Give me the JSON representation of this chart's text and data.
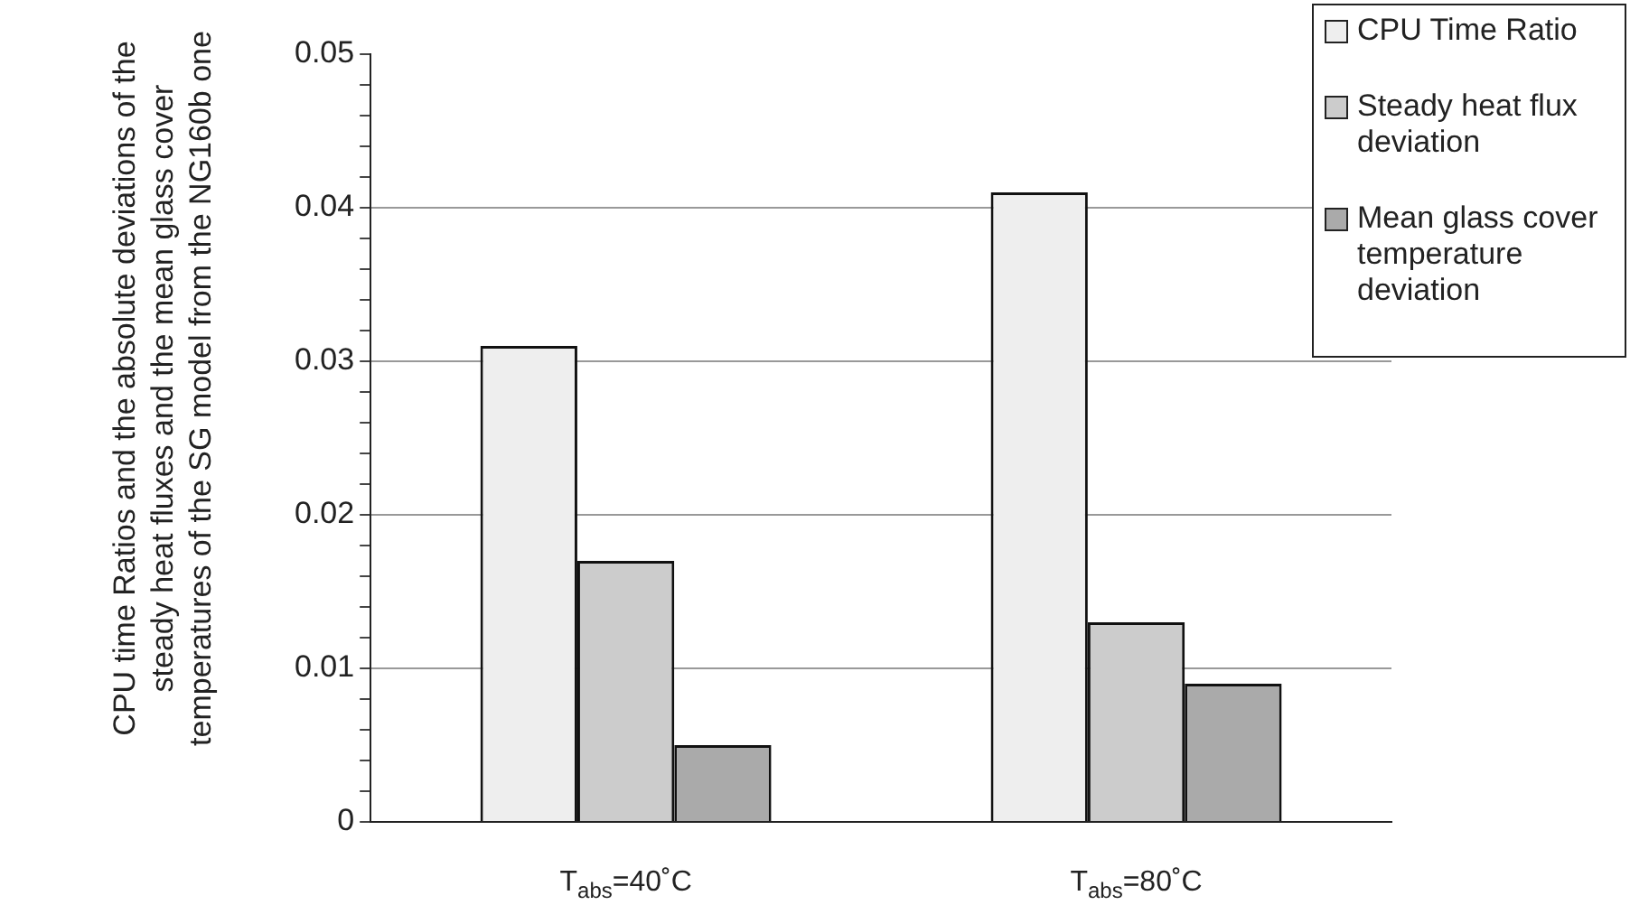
{
  "chart_data": {
    "type": "bar",
    "ylabel": "CPU time Ratios and the absolute deviations of the steady heat fluxes and the mean glass cover temperatures of the SG model from the NG160b one",
    "categories": [
      "T$_{abs}$=40˚C",
      "T$_{abs}$=80˚C"
    ],
    "series": [
      {
        "name": "CPU Time Ratio",
        "color": "#eeeeee",
        "values": [
          0.031,
          0.041
        ]
      },
      {
        "name": "Steady heat flux deviation",
        "color": "#cccccc",
        "values": [
          0.017,
          0.013
        ]
      },
      {
        "name": "Mean glass cover temperature deviation",
        "color": "#aaaaaa",
        "values": [
          0.005,
          0.009
        ]
      }
    ],
    "ylim": [
      0,
      0.05
    ],
    "yticks": [
      0,
      {
        "value": 0.002,
        "label": null
      },
      {
        "value": 0.004,
        "label": null
      },
      {
        "value": 0.006,
        "label": null
      },
      {
        "value": 0.008,
        "label": null
      },
      0.01,
      {
        "value": 0.012,
        "label": null
      },
      {
        "value": 0.014,
        "label": null
      },
      {
        "value": 0.016,
        "label": null
      },
      {
        "value": 0.018,
        "label": null
      },
      0.02,
      {
        "value": 0.022,
        "label": null
      },
      {
        "value": 0.024,
        "label": null
      },
      {
        "value": 0.026,
        "label": null
      },
      {
        "value": 0.028,
        "label": null
      },
      0.03,
      {
        "value": 0.032,
        "label": null
      },
      {
        "value": 0.034,
        "label": null
      },
      {
        "value": 0.036,
        "label": null
      },
      {
        "value": 0.038,
        "label": null
      },
      0.04,
      {
        "value": 0.042,
        "label": null
      },
      {
        "value": 0.044,
        "label": null
      },
      {
        "value": 0.046,
        "label": null
      },
      {
        "value": 0.048,
        "label": null
      },
      0.05
    ],
    "grid": "y",
    "legend": "top right"
  }
}
